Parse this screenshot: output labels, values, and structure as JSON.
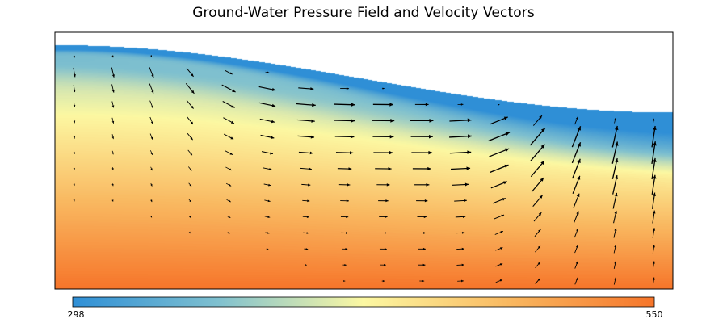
{
  "chart_data": {
    "type": "heatmap",
    "title": "Ground-Water Pressure Field and Velocity Vectors",
    "field": "pressure",
    "colorbar": {
      "min": 298,
      "max": 550,
      "min_label": "298",
      "max_label": "550",
      "colors": [
        "#2f8fd6",
        "#7fc0cf",
        "#fcf8a2",
        "#f9b860",
        "#f6752a"
      ],
      "orientation": "horizontal",
      "placement": "bottom"
    },
    "domain": {
      "x": [
        0,
        16
      ],
      "y": [
        0,
        16
      ],
      "surface_elevation_left": 15.2,
      "surface_elevation_right": 11.0,
      "surface_profile": "cosine"
    },
    "vectors": {
      "color": "#000000",
      "columns_x": [
        0.5,
        1.5,
        2.5,
        3.5,
        4.5,
        5.5,
        6.5,
        7.5,
        8.5,
        9.5,
        10.5,
        11.5,
        12.5,
        13.5,
        14.5,
        15.5
      ],
      "note": "velocity vectors sampled on a regular grid below the water table"
    },
    "xlabel": "",
    "ylabel": "",
    "grid": false,
    "legend": "colorbar-bottom"
  },
  "colors": {
    "frame": "#000000",
    "background": "#ffffff",
    "arrow": "#000000"
  }
}
